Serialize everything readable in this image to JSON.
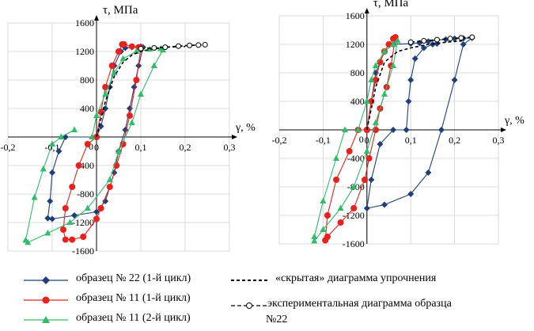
{
  "chart_data": [
    {
      "type": "line",
      "ylabel": "τ, МПа",
      "xlabel": "γ, %",
      "xlim": [
        -0.2,
        0.3
      ],
      "ylim": [
        -1600,
        1600
      ],
      "xticks": [
        "-0,2",
        "-0,1",
        "0",
        "0,1",
        "0,2",
        "0,3"
      ],
      "yticks": [
        "-1600",
        "-1200",
        "-800",
        "-400",
        "0",
        "400",
        "800",
        "1200",
        "1600"
      ],
      "grid": true,
      "series": [
        {
          "name": "образец № 22 (1-й цикл)",
          "color": "#1f3f7a",
          "marker": "diamond",
          "x": [
            0.0,
            0.01,
            0.02,
            0.03,
            0.04,
            0.055,
            0.065,
            0.08,
            0.1,
            0.105,
            0.095,
            0.085,
            0.075,
            0.065,
            0.05,
            0.04,
            0.02,
            0.0,
            -0.05,
            -0.1,
            -0.11,
            -0.105,
            -0.1,
            -0.085,
            -0.07,
            0.0
          ],
          "y": [
            0,
            150,
            400,
            700,
            1000,
            1200,
            1250,
            1260,
            1270,
            1260,
            1000,
            700,
            400,
            100,
            -200,
            -500,
            -900,
            -1050,
            -1100,
            -1150,
            -1140,
            -900,
            -500,
            -200,
            0,
            0
          ]
        },
        {
          "name": "образец № 11 (1-й цикл)",
          "color": "#e8211d",
          "marker": "circle",
          "x": [
            0.0,
            0.01,
            0.02,
            0.035,
            0.05,
            0.058,
            0.062,
            0.08,
            0.095,
            0.1,
            0.09,
            0.075,
            0.06,
            0.045,
            0.03,
            0.01,
            0.0,
            -0.03,
            -0.055,
            -0.07,
            -0.075,
            -0.07,
            -0.055,
            -0.04,
            -0.02,
            0.0
          ],
          "y": [
            0,
            350,
            700,
            1000,
            1200,
            1300,
            1300,
            1270,
            1260,
            1250,
            800,
            300,
            -100,
            -400,
            -700,
            -1000,
            -1150,
            -1400,
            -1440,
            -1440,
            -1300,
            -1000,
            -700,
            -400,
            -100,
            0
          ]
        },
        {
          "name": "образец № 11 (2-й цикл)",
          "color": "#2fbd6a",
          "marker": "triangle",
          "x": [
            -0.01,
            0.0,
            0.02,
            0.04,
            0.06,
            0.09,
            0.12,
            0.145,
            0.15,
            0.13,
            0.1,
            0.08,
            0.05,
            0.03,
            -0.02,
            -0.06,
            -0.11,
            -0.155,
            -0.16,
            -0.14,
            -0.12,
            -0.1,
            -0.08,
            -0.05
          ],
          "y": [
            0,
            300,
            600,
            900,
            1100,
            1200,
            1230,
            1240,
            1220,
            1000,
            600,
            200,
            -200,
            -600,
            -1000,
            -1200,
            -1350,
            -1480,
            -1450,
            -850,
            -450,
            -100,
            0,
            100
          ]
        },
        {
          "name": "«скрытая» диаграмма упрочнения",
          "color": "#000000",
          "marker": "none",
          "dash": true,
          "x": [
            0.0,
            0.02,
            0.04,
            0.06,
            0.08,
            0.1,
            0.13,
            0.16,
            0.2
          ],
          "y": [
            0,
            500,
            850,
            1050,
            1150,
            1200,
            1240,
            1260,
            1270
          ]
        },
        {
          "name": "экспериментальная диаграмма образца №22",
          "color": "#000000",
          "marker": "open-circle",
          "dash": true,
          "x": [
            0.1,
            0.13,
            0.155,
            0.185,
            0.21,
            0.23,
            0.245
          ],
          "y": [
            1240,
            1250,
            1260,
            1275,
            1285,
            1290,
            1295
          ]
        }
      ]
    },
    {
      "type": "line",
      "ylabel": "τ, МПа",
      "xlabel": "γ, %",
      "xlim": [
        -0.2,
        0.3
      ],
      "ylim": [
        -1600,
        1600
      ],
      "xticks": [
        "-0,2",
        "-0,1",
        "0",
        "0,1",
        "0,2",
        "0,3"
      ],
      "yticks": [
        "-1600",
        "-1200",
        "-800",
        "-400",
        "0",
        "400",
        "800",
        "1200",
        "1600"
      ],
      "grid": true,
      "series": [
        {
          "name": "образец № 22 (1-й цикл)",
          "color": "#1f3f7a",
          "marker": "diamond",
          "x": [
            0.0,
            0.02,
            0.04,
            0.06,
            0.1,
            0.12,
            0.14,
            0.16,
            0.18,
            0.2,
            0.22,
            0.24,
            0.22,
            0.2,
            0.17,
            0.14,
            0.1,
            0.04,
            0.0,
            0.01,
            0.03,
            0.06,
            0.09,
            0.095,
            0.1,
            0.11,
            0.13,
            0.15,
            0.16
          ],
          "y": [
            0,
            800,
            1100,
            1200,
            1210,
            1220,
            1240,
            1260,
            1270,
            1280,
            1285,
            1290,
            1200,
            700,
            0,
            -600,
            -900,
            -1050,
            -1100,
            -700,
            -200,
            0,
            0,
            400,
            700,
            1000,
            1150,
            1200,
            1210
          ]
        },
        {
          "name": "образец № 11 (1-й цикл)",
          "color": "#e8211d",
          "marker": "circle",
          "x": [
            0.0,
            0.01,
            0.02,
            0.03,
            0.04,
            0.05,
            0.06,
            0.065,
            0.055,
            0.045,
            0.03,
            0.02,
            0.005,
            -0.005,
            -0.03,
            -0.06,
            -0.09,
            -0.095,
            -0.09,
            -0.07,
            -0.04,
            -0.02,
            0.0
          ],
          "y": [
            0,
            400,
            700,
            950,
            1100,
            1200,
            1280,
            1300,
            900,
            600,
            300,
            0,
            -400,
            -700,
            -1100,
            -1300,
            -1500,
            -1550,
            -1200,
            -700,
            -300,
            0,
            0
          ]
        },
        {
          "name": "образец № 11 (2-й цикл)",
          "color": "#2fbd6a",
          "marker": "triangle",
          "x": [
            -0.02,
            0.0,
            0.01,
            0.02,
            0.04,
            0.06,
            0.07,
            0.06,
            0.04,
            0.02,
            0.0,
            -0.03,
            -0.06,
            -0.1,
            -0.12,
            -0.12,
            -0.1,
            -0.07,
            -0.05
          ],
          "y": [
            0,
            400,
            700,
            900,
            1100,
            1200,
            1250,
            900,
            500,
            100,
            -300,
            -800,
            -1100,
            -1400,
            -1560,
            -1500,
            -1000,
            -400,
            0
          ]
        },
        {
          "name": "«скрытая» диаграмма упрочнения",
          "color": "#000000",
          "marker": "none",
          "dash": true,
          "x": [
            0.0,
            0.02,
            0.04,
            0.07,
            0.1,
            0.14,
            0.18,
            0.22
          ],
          "y": [
            0,
            600,
            950,
            1100,
            1150,
            1200,
            1230,
            1250
          ]
        },
        {
          "name": "экспериментальная диаграмма образца №22",
          "color": "#000000",
          "marker": "open-circle",
          "dash": true,
          "x": [
            0.1,
            0.13,
            0.16,
            0.19,
            0.215,
            0.24
          ],
          "y": [
            1230,
            1250,
            1265,
            1280,
            1290,
            1300
          ]
        }
      ]
    }
  ],
  "legend": {
    "items": [
      {
        "label": "образец № 22 (1-й цикл)",
        "color": "#1f3f7a",
        "marker": "diamond",
        "dash": false
      },
      {
        "label": "образец № 11 (1-й цикл)",
        "color": "#e8211d",
        "marker": "circle",
        "dash": false
      },
      {
        "label": "образец № 11 (2-й цикл)",
        "color": "#2fbd6a",
        "marker": "triangle",
        "dash": false
      },
      {
        "label": "«скрытая» диаграмма упрочнения",
        "color": "#000000",
        "marker": "none",
        "dash": true
      },
      {
        "label": "экспериментальная диаграмма образца",
        "color": "#000000",
        "marker": "open-circle",
        "dash": true
      },
      {
        "label": "№22",
        "color": "",
        "marker": "none",
        "dash": false
      }
    ]
  }
}
